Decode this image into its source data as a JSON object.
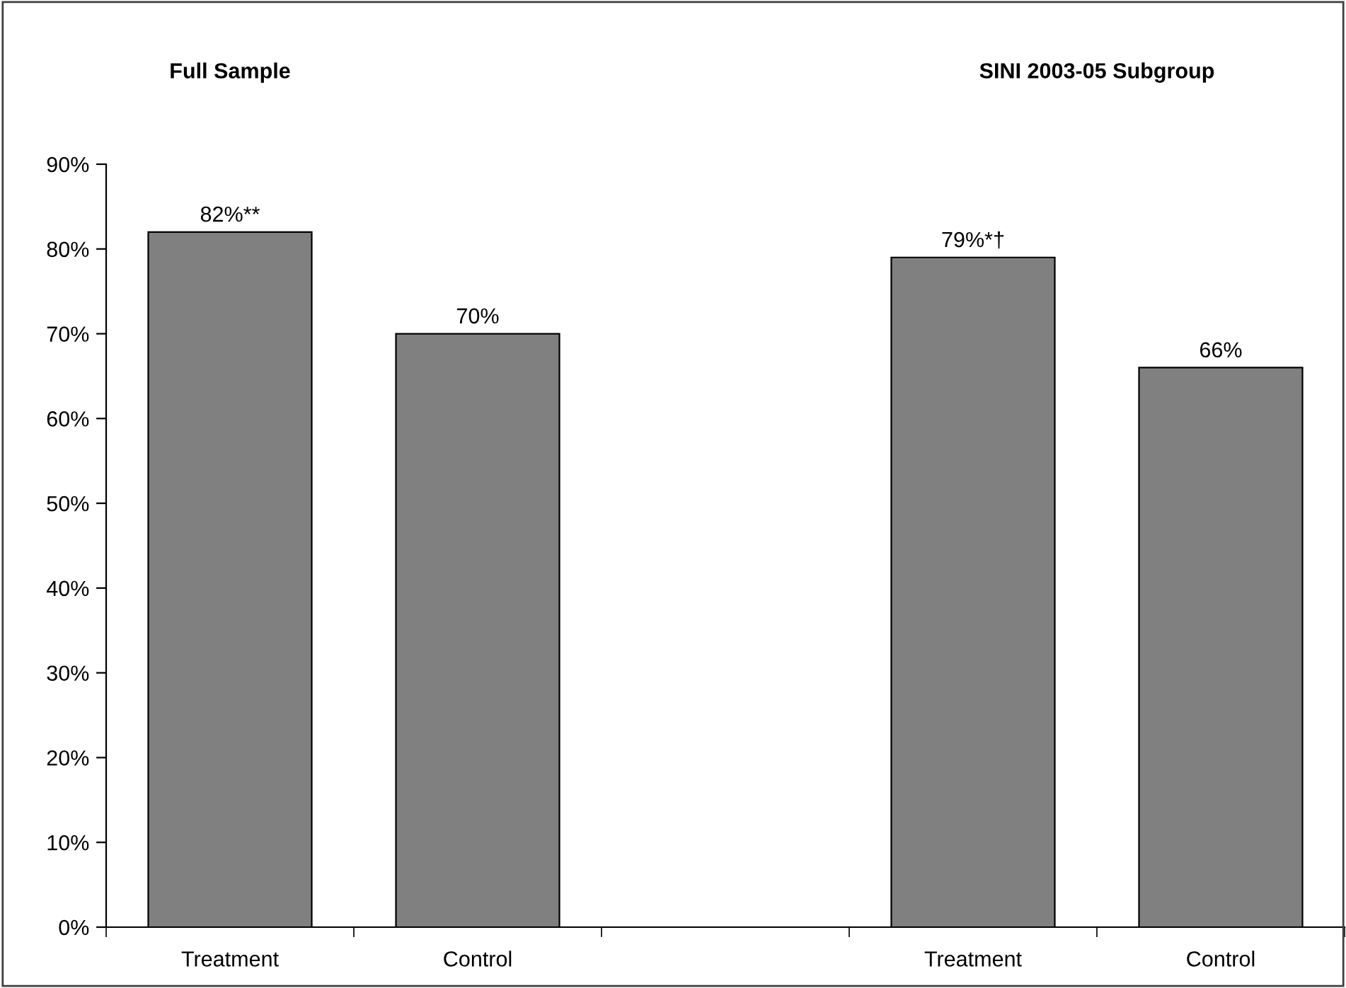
{
  "chart_data": {
    "type": "bar",
    "categories": [
      "Treatment",
      "Control",
      null,
      "Treatment",
      "Control"
    ],
    "values": [
      82,
      70,
      null,
      79,
      66
    ],
    "value_labels": [
      "82%**",
      "70%",
      null,
      "79%*†",
      "66%"
    ],
    "color": "#808080",
    "ylim": [
      0,
      90
    ],
    "yticks": [
      {
        "value": 0,
        "label": "0%"
      },
      {
        "value": 10,
        "label": "10%"
      },
      {
        "value": 20,
        "label": "20%"
      },
      {
        "value": 30,
        "label": "30%"
      },
      {
        "value": 40,
        "label": "40%"
      },
      {
        "value": 50,
        "label": "50%"
      },
      {
        "value": 60,
        "label": "60%"
      },
      {
        "value": 70,
        "label": "70%"
      },
      {
        "value": 80,
        "label": "80%"
      },
      {
        "value": 90,
        "label": "90%"
      }
    ],
    "annotations": [
      "Full Sample",
      "SINI 2003-05 Subgroup"
    ],
    "grid": false,
    "legend": false
  }
}
